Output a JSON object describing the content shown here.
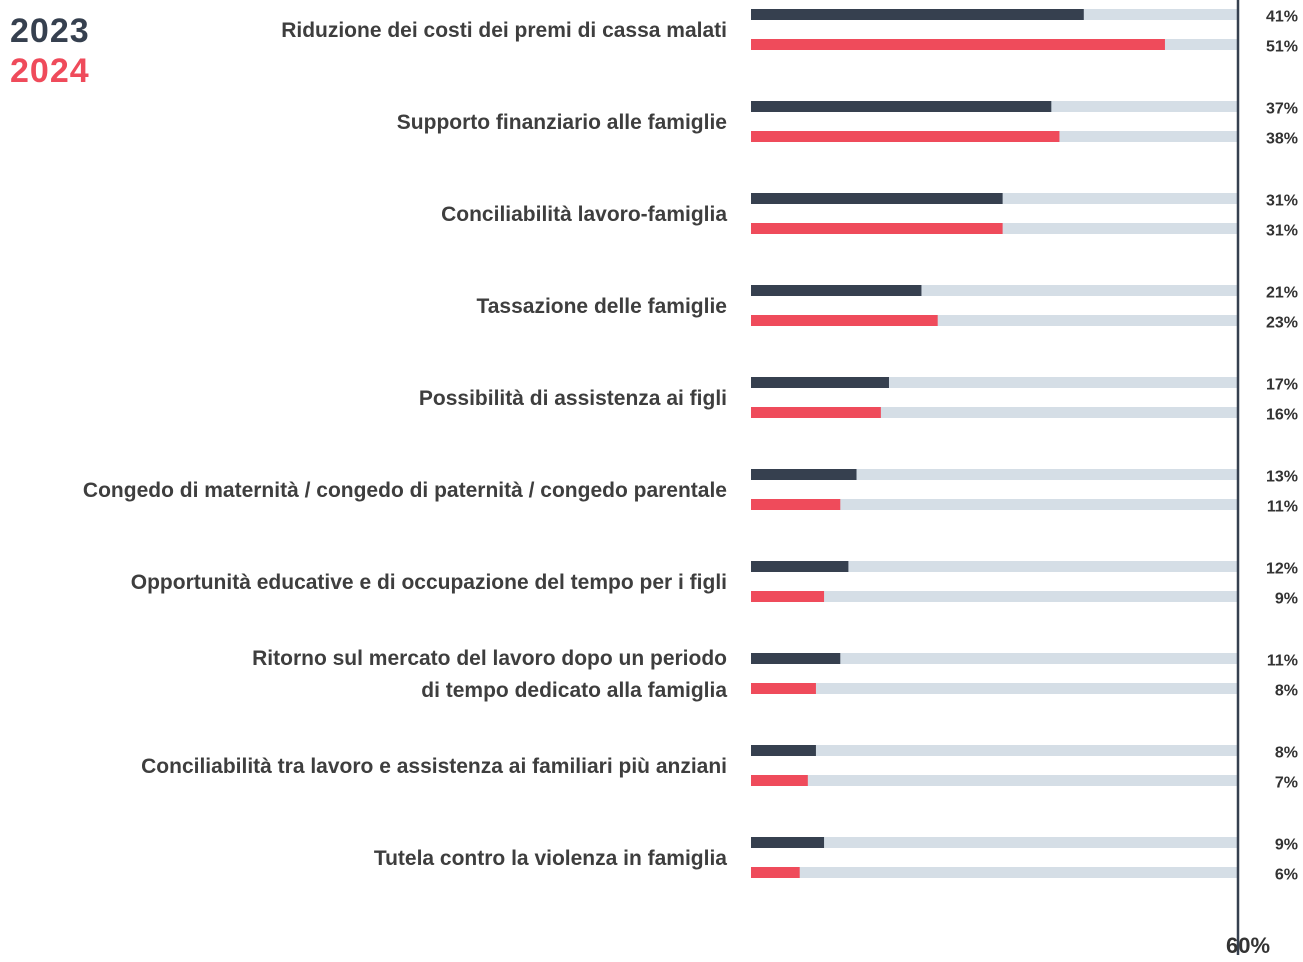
{
  "chart_data": {
    "type": "bar",
    "orientation": "horizontal",
    "categories": [
      "Riduzione dei costi dei premi di cassa malati",
      "Supporto finanziario alle famiglie",
      "Conciliabilità lavoro-famiglia",
      "Tassazione delle famiglie",
      "Possibilità di assistenza ai figli",
      "Congedo di maternità / congedo di paternità / congedo parentale",
      "Opportunità educative e di occupazione del tempo per i figli",
      "Ritorno sul mercato del lavoro dopo un periodo\ndi tempo dedicato alla famiglia",
      "Conciliabilità tra lavoro e assistenza ai familiari più anziani",
      "Tutela contro la violenza in famiglia"
    ],
    "series": [
      {
        "name": "2023",
        "color": "#36404f",
        "values": [
          41,
          37,
          31,
          21,
          17,
          13,
          12,
          11,
          8,
          9
        ],
        "value_labels": [
          "41%",
          "37%",
          "31%",
          "21%",
          "17%",
          "13%",
          "12%",
          "11%",
          "8%",
          "9%"
        ]
      },
      {
        "name": "2024",
        "color": "#ef4b5b",
        "values": [
          51,
          38,
          31,
          23,
          16,
          11,
          9,
          8,
          7,
          6
        ],
        "value_labels": [
          "51%",
          "38%",
          "31%",
          "23%",
          "16%",
          "11%",
          "9%",
          "8%",
          "7%",
          "6%"
        ]
      }
    ],
    "xlim": [
      0,
      60
    ],
    "xticks": [
      {
        "value": 60,
        "label": "60%"
      }
    ],
    "track_color": "#d5dee6",
    "legend": "top-left"
  }
}
